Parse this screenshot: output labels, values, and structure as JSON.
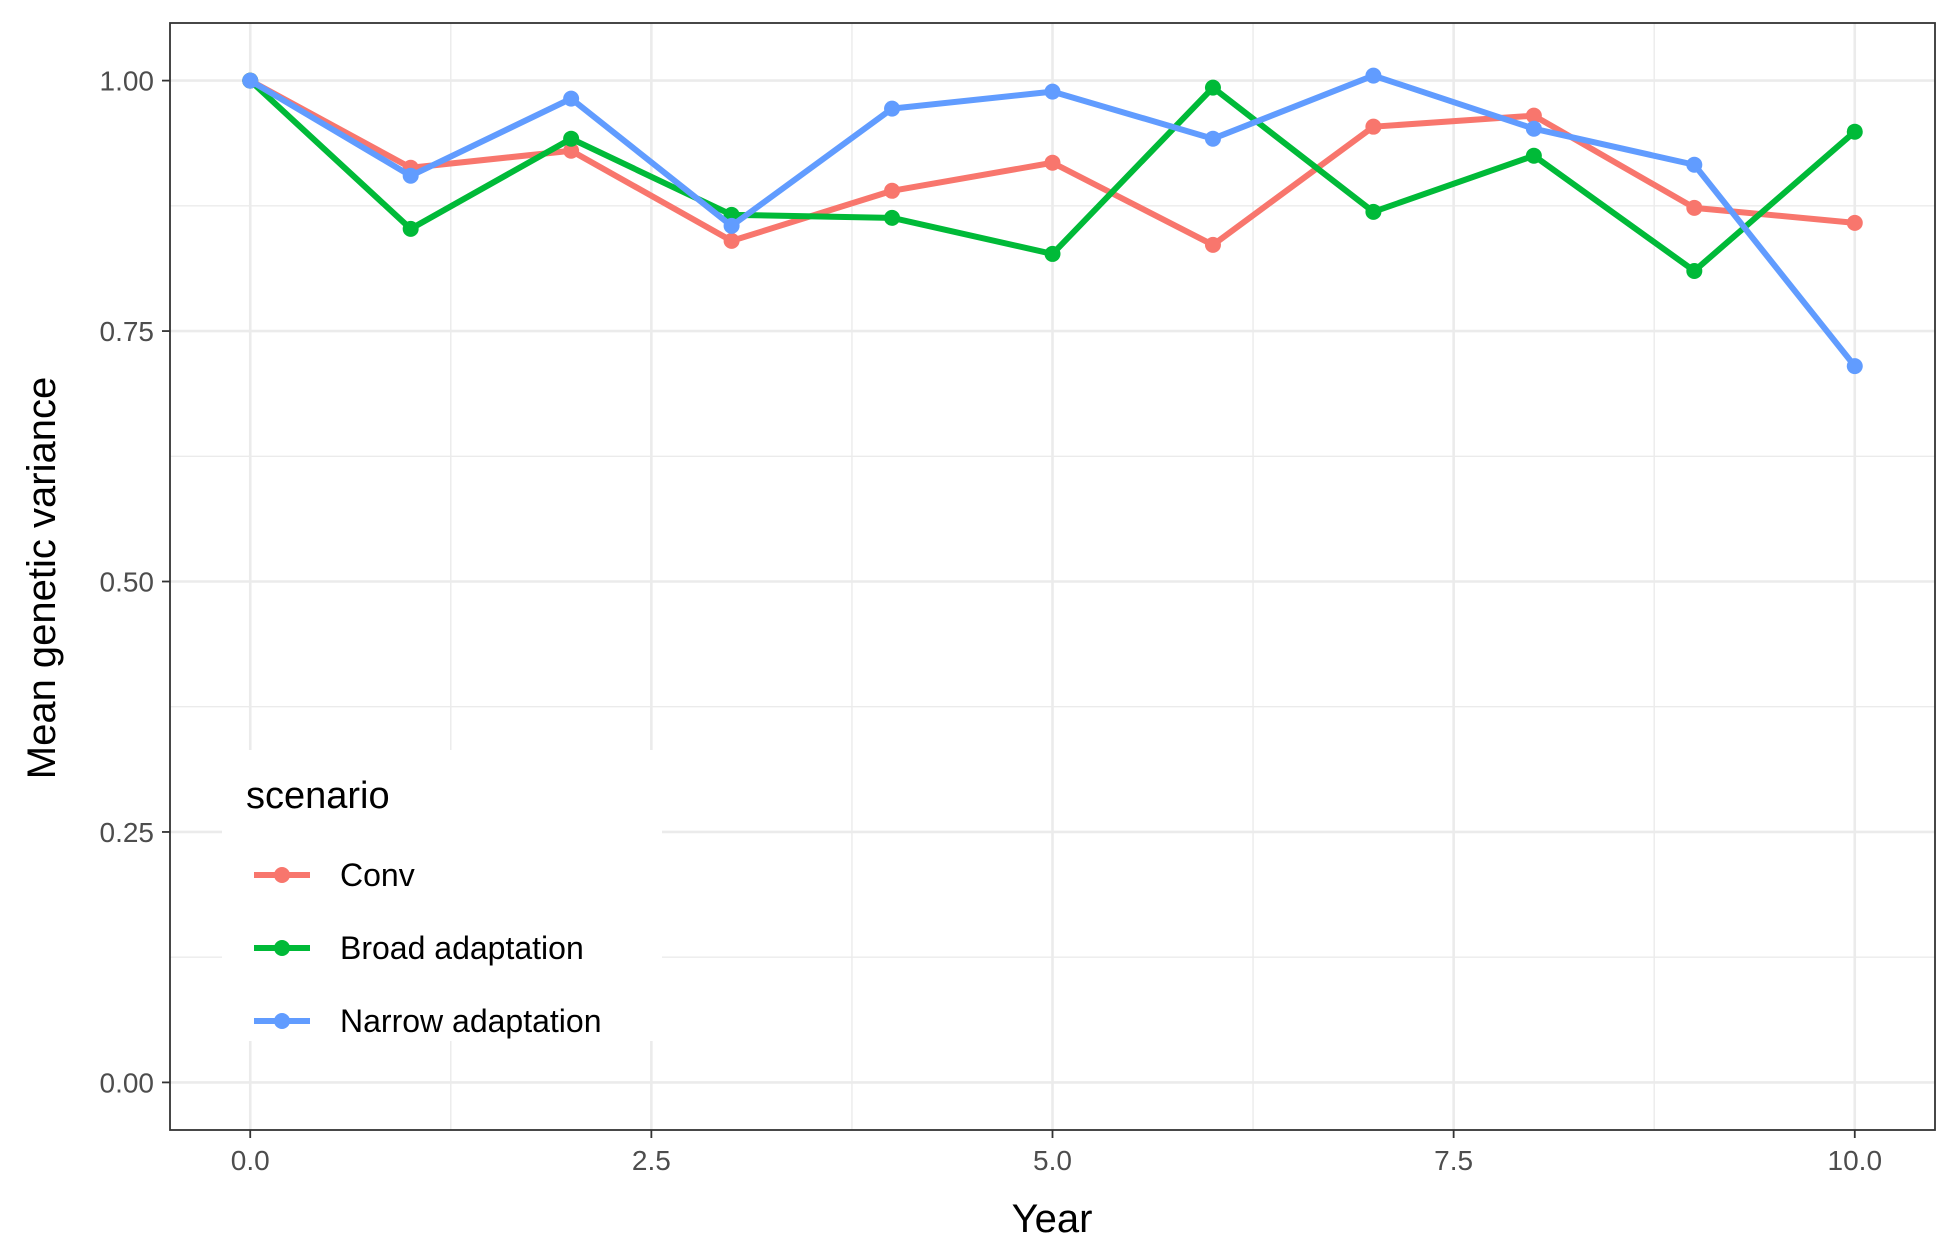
{
  "chart_data": {
    "type": "line",
    "xlabel": "Year",
    "ylabel": "Mean genetic variance",
    "xlim": [
      -0.5,
      10.5
    ],
    "ylim": [
      -0.0475,
      1.0575
    ],
    "x_ticks": [
      0,
      2.5,
      5,
      7.5,
      10
    ],
    "x_tick_labels": [
      "0.0",
      "2.5",
      "5.0",
      "7.5",
      "10.0"
    ],
    "y_ticks": [
      0,
      0.25,
      0.5,
      0.75,
      1
    ],
    "y_tick_labels": [
      "0.00",
      "0.25",
      "0.50",
      "0.75",
      "1.00"
    ],
    "grid": true,
    "legend": {
      "title": "scenario",
      "placement": "bottom-left inside"
    },
    "x": [
      0,
      1,
      2,
      3,
      4,
      5,
      6,
      7,
      8,
      9,
      10
    ],
    "series": [
      {
        "name": "Conv",
        "color": "#F8766D",
        "values": [
          1.0,
          0.913,
          0.93,
          0.84,
          0.89,
          0.918,
          0.836,
          0.954,
          0.965,
          0.873,
          0.858
        ]
      },
      {
        "name": "Broad adaptation",
        "color": "#00BA38",
        "values": [
          1.0,
          0.852,
          0.942,
          0.866,
          0.863,
          0.827,
          0.993,
          0.869,
          0.925,
          0.81,
          0.949
        ]
      },
      {
        "name": "Narrow adaptation",
        "color": "#619CFF",
        "values": [
          1.0,
          0.905,
          0.982,
          0.855,
          0.972,
          0.989,
          0.942,
          1.005,
          0.952,
          0.916,
          0.715
        ]
      }
    ]
  }
}
